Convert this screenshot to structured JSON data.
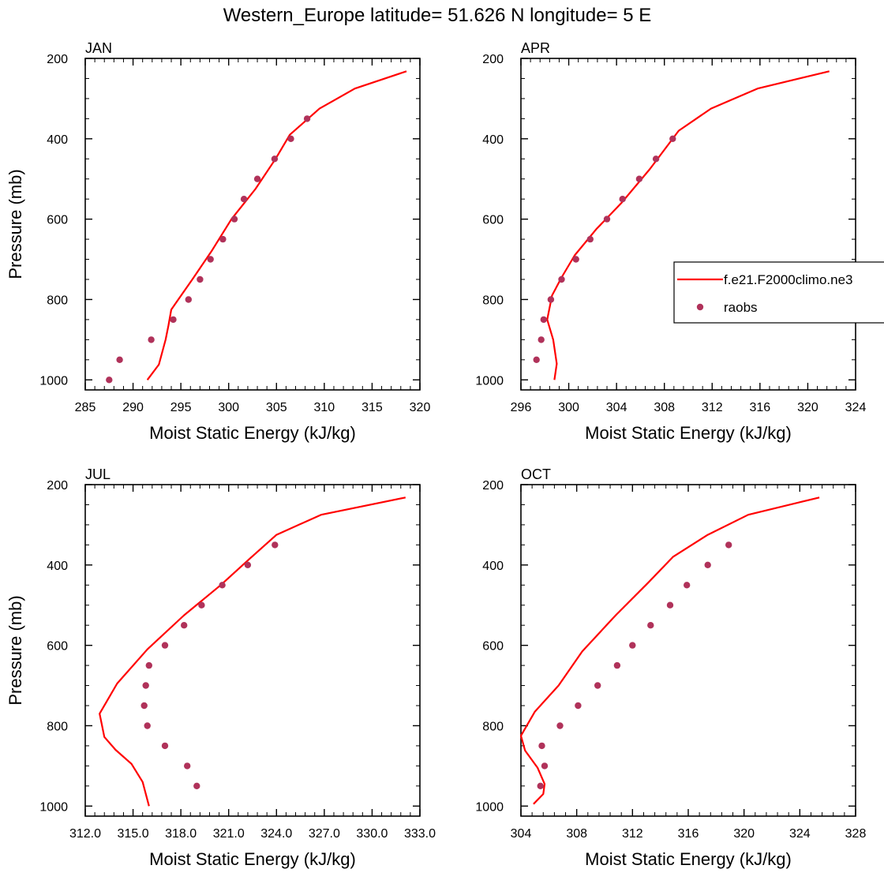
{
  "figure": {
    "title": "Western_Europe  latitude= 51.626 N longitude= 5 E",
    "colors": {
      "model": "#ff0000",
      "obs": "#b0325a",
      "frame": "#000000"
    }
  },
  "legend": {
    "placement": "right-middle",
    "entries": [
      {
        "label": "f.e21.F2000climo.ne3",
        "marker": "line",
        "series": "model"
      },
      {
        "label": "raobs",
        "marker": "dot",
        "series": "obs"
      }
    ]
  },
  "chart_data": [
    {
      "type": "line",
      "title": "JAN",
      "xlabel": "Moist Static Energy (kJ/kg)",
      "ylabel": "Pressure (mb)",
      "xlim": [
        285,
        320
      ],
      "ylim": [
        200,
        1025
      ],
      "y_reversed": true,
      "xticks": [
        "285",
        "290",
        "295",
        "300",
        "305",
        "310",
        "315",
        "320"
      ],
      "xtick_values": [
        285,
        290,
        295,
        300,
        305,
        310,
        315,
        320
      ],
      "yticks": [
        "200",
        "400",
        "600",
        "800",
        "1000"
      ],
      "ytick_values": [
        200,
        400,
        600,
        800,
        1000
      ],
      "series": [
        {
          "key": "model",
          "kind": "line",
          "points": [
            [
              291.5,
              1000
            ],
            [
              292.7,
              962
            ],
            [
              293.4,
              900
            ],
            [
              293.7,
              865
            ],
            [
              294.0,
              825
            ],
            [
              296.2,
              750
            ],
            [
              298.2,
              680
            ],
            [
              300.3,
              600
            ],
            [
              302.8,
              525
            ],
            [
              304.9,
              450
            ],
            [
              306.4,
              390
            ],
            [
              309.5,
              325
            ],
            [
              313.2,
              275
            ],
            [
              318.6,
              232
            ]
          ]
        },
        {
          "key": "obs",
          "kind": "scatter",
          "points": [
            [
              287.5,
              1000
            ],
            [
              288.6,
              950
            ],
            [
              291.9,
              900
            ],
            [
              294.2,
              850
            ],
            [
              295.8,
              800
            ],
            [
              297.0,
              750
            ],
            [
              298.1,
              700
            ],
            [
              299.4,
              650
            ],
            [
              300.6,
              600
            ],
            [
              301.6,
              550
            ],
            [
              303.0,
              500
            ],
            [
              304.8,
              450
            ],
            [
              306.5,
              400
            ],
            [
              308.2,
              350
            ]
          ]
        }
      ]
    },
    {
      "type": "line",
      "title": "APR",
      "xlabel": "Moist Static Energy (kJ/kg)",
      "ylabel": "",
      "xlim": [
        296,
        324
      ],
      "ylim": [
        200,
        1025
      ],
      "y_reversed": true,
      "xticks": [
        "296",
        "300",
        "304",
        "308",
        "312",
        "316",
        "320",
        "324"
      ],
      "xtick_values": [
        296,
        300,
        304,
        308,
        312,
        316,
        320,
        324
      ],
      "yticks": [
        "200",
        "400",
        "600",
        "800",
        "1000"
      ],
      "ytick_values": [
        200,
        400,
        600,
        800,
        1000
      ],
      "series": [
        {
          "key": "model",
          "kind": "line",
          "points": [
            [
              298.8,
              1000
            ],
            [
              299.0,
              960
            ],
            [
              298.7,
              900
            ],
            [
              298.2,
              850
            ],
            [
              298.6,
              790
            ],
            [
              299.4,
              745
            ],
            [
              300.5,
              690
            ],
            [
              302.3,
              625
            ],
            [
              304.4,
              560
            ],
            [
              306.8,
              475
            ],
            [
              309.2,
              380
            ],
            [
              311.9,
              325
            ],
            [
              315.8,
              275
            ],
            [
              321.8,
              232
            ]
          ]
        },
        {
          "key": "obs",
          "kind": "scatter",
          "points": [
            [
              297.3,
              950
            ],
            [
              297.7,
              900
            ],
            [
              297.9,
              850
            ],
            [
              298.5,
              800
            ],
            [
              299.4,
              750
            ],
            [
              300.6,
              700
            ],
            [
              301.8,
              650
            ],
            [
              303.2,
              600
            ],
            [
              304.5,
              550
            ],
            [
              305.9,
              500
            ],
            [
              307.3,
              450
            ],
            [
              308.7,
              400
            ]
          ]
        }
      ]
    },
    {
      "type": "line",
      "title": "JUL",
      "xlabel": "Moist Static Energy (kJ/kg)",
      "ylabel": "Pressure (mb)",
      "xlim": [
        312,
        333
      ],
      "ylim": [
        200,
        1025
      ],
      "y_reversed": true,
      "xticks": [
        "312.0",
        "315.0",
        "318.0",
        "321.0",
        "324.0",
        "327.0",
        "330.0",
        "333.0"
      ],
      "xtick_values": [
        312,
        315,
        318,
        321,
        324,
        327,
        330,
        333
      ],
      "yticks": [
        "200",
        "400",
        "600",
        "800",
        "1000"
      ],
      "ytick_values": [
        200,
        400,
        600,
        800,
        1000
      ],
      "series": [
        {
          "key": "model",
          "kind": "line",
          "points": [
            [
              316.0,
              1000
            ],
            [
              315.6,
              940
            ],
            [
              314.9,
              895
            ],
            [
              313.9,
              860
            ],
            [
              313.2,
              828
            ],
            [
              312.9,
              770
            ],
            [
              314.0,
              695
            ],
            [
              315.9,
              610
            ],
            [
              318.2,
              525
            ],
            [
              320.5,
              450
            ],
            [
              322.3,
              385
            ],
            [
              324.0,
              325
            ],
            [
              326.8,
              275
            ],
            [
              332.1,
              232
            ]
          ]
        },
        {
          "key": "obs",
          "kind": "scatter",
          "points": [
            [
              319.0,
              950
            ],
            [
              318.4,
              900
            ],
            [
              317.0,
              850
            ],
            [
              315.9,
              800
            ],
            [
              315.7,
              750
            ],
            [
              315.8,
              700
            ],
            [
              316.0,
              650
            ],
            [
              317.0,
              600
            ],
            [
              318.2,
              550
            ],
            [
              319.3,
              500
            ],
            [
              320.6,
              450
            ],
            [
              322.2,
              400
            ],
            [
              323.9,
              350
            ]
          ]
        }
      ]
    },
    {
      "type": "line",
      "title": "OCT",
      "xlabel": "Moist Static Energy (kJ/kg)",
      "ylabel": "",
      "xlim": [
        304,
        328
      ],
      "ylim": [
        200,
        1025
      ],
      "y_reversed": true,
      "xticks": [
        "304",
        "308",
        "312",
        "316",
        "320",
        "324",
        "328"
      ],
      "xtick_values": [
        304,
        308,
        312,
        316,
        320,
        324,
        328
      ],
      "yticks": [
        "200",
        "400",
        "600",
        "800",
        "1000"
      ],
      "ytick_values": [
        200,
        400,
        600,
        800,
        1000
      ],
      "series": [
        {
          "key": "model",
          "kind": "line",
          "points": [
            [
              304.9,
              995
            ],
            [
              305.6,
              970
            ],
            [
              305.7,
              945
            ],
            [
              305.2,
              905
            ],
            [
              304.3,
              862
            ],
            [
              304.0,
              825
            ],
            [
              305.0,
              765
            ],
            [
              306.7,
              700
            ],
            [
              308.4,
              615
            ],
            [
              310.8,
              525
            ],
            [
              313.1,
              445
            ],
            [
              314.9,
              380
            ],
            [
              317.4,
              325
            ],
            [
              320.3,
              275
            ],
            [
              325.4,
              232
            ]
          ]
        },
        {
          "key": "obs",
          "kind": "scatter",
          "points": [
            [
              305.4,
              950
            ],
            [
              305.7,
              900
            ],
            [
              305.5,
              850
            ],
            [
              306.8,
              800
            ],
            [
              308.1,
              750
            ],
            [
              309.5,
              700
            ],
            [
              310.9,
              650
            ],
            [
              312.0,
              600
            ],
            [
              313.3,
              550
            ],
            [
              314.7,
              500
            ],
            [
              315.9,
              450
            ],
            [
              317.4,
              400
            ],
            [
              318.9,
              350
            ]
          ]
        }
      ]
    }
  ]
}
